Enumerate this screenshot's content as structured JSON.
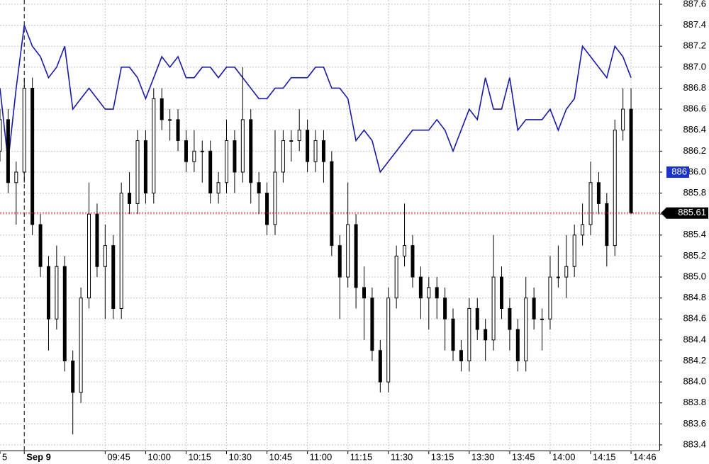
{
  "chart_data": {
    "type": "candlestick",
    "xlim": [
      0,
      81.5
    ],
    "xticks": [
      {
        "value": 0,
        "label": "5"
      },
      {
        "value": 3,
        "label": "Sep 9"
      },
      {
        "value": 13,
        "label": "09:45"
      },
      {
        "value": 18,
        "label": "10:00"
      },
      {
        "value": 23,
        "label": "10:15"
      },
      {
        "value": 28,
        "label": "10:30"
      },
      {
        "value": 33,
        "label": "10:45"
      },
      {
        "value": 38,
        "label": "11:00"
      },
      {
        "value": 43,
        "label": "11:15"
      },
      {
        "value": 48,
        "label": "11:30"
      },
      {
        "value": 53,
        "label": "13:15"
      },
      {
        "value": 58,
        "label": "13:30"
      },
      {
        "value": 63,
        "label": "13:45"
      },
      {
        "value": 68,
        "label": "14:00"
      },
      {
        "value": 73,
        "label": "14:15"
      },
      {
        "value": 78,
        "label": "14:46"
      }
    ],
    "ylim": [
      883.4,
      887.6
    ],
    "yticks": [
      883.4,
      883.6,
      883.8,
      {
        "value": 884.0,
        "label": "884.0"
      },
      884.2,
      884.4,
      884.6,
      884.8,
      {
        "value": 885.0,
        "label": "885.0"
      },
      885.2,
      885.4,
      885.6,
      885.8,
      {
        "value": 886.0,
        "label": "886.0"
      },
      886.2,
      886.4,
      886.6,
      886.8,
      {
        "value": 887.0,
        "label": "887.0"
      },
      887.2,
      887.4,
      887.6
    ],
    "grid": true,
    "candles": {
      "color": "#000000",
      "open": [
        886.2,
        886.5,
        885.9,
        886.0,
        886.8,
        885.5,
        885.1,
        884.6,
        885.1,
        884.2,
        883.9,
        884.8,
        885.6,
        885.1,
        885.3,
        884.7,
        885.8,
        885.7,
        886.3,
        885.8,
        886.7,
        886.5,
        886.5,
        886.3,
        886.1,
        886.2,
        886.2,
        885.8,
        885.9,
        886.3,
        886.0,
        886.5,
        885.9,
        885.8,
        885.5,
        886.0,
        886.3,
        886.3,
        886.4,
        886.1,
        886.3,
        886.1,
        885.3,
        885.0,
        885.5,
        884.9,
        884.8,
        884.3,
        884.0,
        884.8,
        885.2,
        885.3,
        885.0,
        884.8,
        884.9,
        884.8,
        884.6,
        884.3,
        884.2,
        884.7,
        884.5,
        884.4,
        885.0,
        884.7,
        884.5,
        884.2,
        884.8,
        884.6,
        884.6,
        885.0,
        885.0,
        885.1,
        885.4,
        885.5,
        885.9,
        885.7,
        885.3,
        886.4,
        886.6
      ],
      "high": [
        886.6,
        886.6,
        886.1,
        886.9,
        886.9,
        885.6,
        885.2,
        885.3,
        885.2,
        884.3,
        884.9,
        885.9,
        885.7,
        885.5,
        885.4,
        885.9,
        886.0,
        886.4,
        886.4,
        886.8,
        886.8,
        886.6,
        886.6,
        886.4,
        886.4,
        886.3,
        886.3,
        886.0,
        886.5,
        886.4,
        887.0,
        886.6,
        886.0,
        885.9,
        886.4,
        886.4,
        886.4,
        886.6,
        886.5,
        886.4,
        886.4,
        886.2,
        885.4,
        885.9,
        885.6,
        885.1,
        884.9,
        884.4,
        884.9,
        885.3,
        885.7,
        885.4,
        885.1,
        885.0,
        885.0,
        884.9,
        884.7,
        884.4,
        884.8,
        884.8,
        884.6,
        885.4,
        885.1,
        884.8,
        884.6,
        885.0,
        884.9,
        884.7,
        885.2,
        885.3,
        885.4,
        885.5,
        885.7,
        886.1,
        886.0,
        885.8,
        886.5,
        886.8,
        886.8
      ],
      "low": [
        886.1,
        885.8,
        885.5,
        885.9,
        885.4,
        885.0,
        884.3,
        884.5,
        884.1,
        883.5,
        883.8,
        884.7,
        885.0,
        884.6,
        884.6,
        884.6,
        885.6,
        885.6,
        885.7,
        885.7,
        886.4,
        886.3,
        886.2,
        886.0,
        886.0,
        885.9,
        885.7,
        885.7,
        885.8,
        885.8,
        885.9,
        885.7,
        885.6,
        885.4,
        885.4,
        885.9,
        886.1,
        886.2,
        886.0,
        886.0,
        885.9,
        885.2,
        884.6,
        884.9,
        884.7,
        884.4,
        884.2,
        883.9,
        883.9,
        884.7,
        885.1,
        884.9,
        884.6,
        884.5,
        884.6,
        884.3,
        884.2,
        884.1,
        884.1,
        884.4,
        884.2,
        884.3,
        884.6,
        884.3,
        884.1,
        884.1,
        884.5,
        884.3,
        884.5,
        884.9,
        884.8,
        885.0,
        885.3,
        885.4,
        885.6,
        885.1,
        885.2,
        886.3,
        885.6
      ],
      "close": [
        886.5,
        885.9,
        886.0,
        886.8,
        885.5,
        885.1,
        884.6,
        885.1,
        884.2,
        883.9,
        884.8,
        885.6,
        885.1,
        885.3,
        884.7,
        885.8,
        885.7,
        886.3,
        885.8,
        886.7,
        886.5,
        886.5,
        886.3,
        886.1,
        886.2,
        886.2,
        885.8,
        885.9,
        886.3,
        886.0,
        886.5,
        885.9,
        885.8,
        885.5,
        886.0,
        886.3,
        886.3,
        886.4,
        886.1,
        886.3,
        886.1,
        885.3,
        885.0,
        885.5,
        884.9,
        884.8,
        884.3,
        884.0,
        884.8,
        885.2,
        885.3,
        885.0,
        884.8,
        884.9,
        884.8,
        884.6,
        884.3,
        884.2,
        884.7,
        884.5,
        884.4,
        885.0,
        884.7,
        884.5,
        884.2,
        884.8,
        884.6,
        884.6,
        885.0,
        885.0,
        885.1,
        885.4,
        885.5,
        885.9,
        885.7,
        885.3,
        886.4,
        886.6,
        885.61
      ]
    },
    "line": {
      "color": "#1a1aa6",
      "values": [
        886.8,
        886.1,
        886.8,
        887.4,
        887.2,
        887.1,
        886.9,
        887.0,
        887.2,
        886.6,
        886.7,
        886.8,
        886.7,
        886.6,
        886.6,
        887.0,
        887.0,
        886.9,
        886.7,
        886.9,
        887.1,
        887.0,
        887.1,
        886.9,
        886.9,
        887.0,
        887.0,
        886.9,
        887.0,
        887.0,
        886.9,
        886.8,
        886.7,
        886.7,
        886.8,
        886.8,
        886.9,
        886.9,
        886.9,
        887.0,
        887.0,
        886.8,
        886.8,
        886.7,
        886.3,
        886.4,
        886.3,
        886.0,
        886.1,
        886.2,
        886.3,
        886.4,
        886.4,
        886.4,
        886.5,
        886.4,
        886.2,
        886.4,
        886.6,
        886.5,
        886.9,
        886.6,
        886.6,
        886.9,
        886.4,
        886.5,
        886.5,
        886.5,
        886.6,
        886.4,
        886.6,
        886.7,
        887.2,
        887.1,
        887.0,
        886.9,
        887.2,
        887.1,
        886.9
      ]
    },
    "markers": [
      {
        "value": 886,
        "label": "886",
        "color": "#1a33cc"
      },
      {
        "value": 885.61,
        "label": "885.61",
        "color": "#000000"
      }
    ],
    "separator": 3
  }
}
